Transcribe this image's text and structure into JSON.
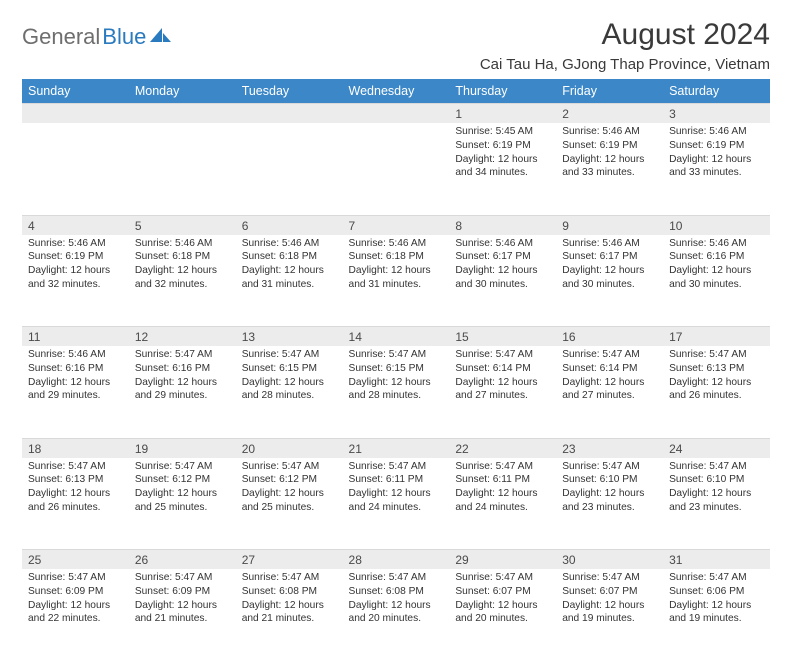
{
  "brand": {
    "part1": "General",
    "part2": "Blue"
  },
  "title": "August 2024",
  "location": "Cai Tau Ha, GJong Thap Province, Vietnam",
  "weekdays": [
    "Sunday",
    "Monday",
    "Tuesday",
    "Wednesday",
    "Thursday",
    "Friday",
    "Saturday"
  ],
  "colors": {
    "headerBg": "#3b87c8",
    "headerText": "#ffffff",
    "dayRowBg": "#ececec",
    "bodyText": "#333333",
    "brandGray": "#6e6e6e",
    "brandBlue": "#2a7abf"
  },
  "weeks": [
    [
      {
        "n": "",
        "sr": "",
        "ss": "",
        "dl": ""
      },
      {
        "n": "",
        "sr": "",
        "ss": "",
        "dl": ""
      },
      {
        "n": "",
        "sr": "",
        "ss": "",
        "dl": ""
      },
      {
        "n": "",
        "sr": "",
        "ss": "",
        "dl": ""
      },
      {
        "n": "1",
        "sr": "Sunrise: 5:45 AM",
        "ss": "Sunset: 6:19 PM",
        "dl": "Daylight: 12 hours and 34 minutes."
      },
      {
        "n": "2",
        "sr": "Sunrise: 5:46 AM",
        "ss": "Sunset: 6:19 PM",
        "dl": "Daylight: 12 hours and 33 minutes."
      },
      {
        "n": "3",
        "sr": "Sunrise: 5:46 AM",
        "ss": "Sunset: 6:19 PM",
        "dl": "Daylight: 12 hours and 33 minutes."
      }
    ],
    [
      {
        "n": "4",
        "sr": "Sunrise: 5:46 AM",
        "ss": "Sunset: 6:19 PM",
        "dl": "Daylight: 12 hours and 32 minutes."
      },
      {
        "n": "5",
        "sr": "Sunrise: 5:46 AM",
        "ss": "Sunset: 6:18 PM",
        "dl": "Daylight: 12 hours and 32 minutes."
      },
      {
        "n": "6",
        "sr": "Sunrise: 5:46 AM",
        "ss": "Sunset: 6:18 PM",
        "dl": "Daylight: 12 hours and 31 minutes."
      },
      {
        "n": "7",
        "sr": "Sunrise: 5:46 AM",
        "ss": "Sunset: 6:18 PM",
        "dl": "Daylight: 12 hours and 31 minutes."
      },
      {
        "n": "8",
        "sr": "Sunrise: 5:46 AM",
        "ss": "Sunset: 6:17 PM",
        "dl": "Daylight: 12 hours and 30 minutes."
      },
      {
        "n": "9",
        "sr": "Sunrise: 5:46 AM",
        "ss": "Sunset: 6:17 PM",
        "dl": "Daylight: 12 hours and 30 minutes."
      },
      {
        "n": "10",
        "sr": "Sunrise: 5:46 AM",
        "ss": "Sunset: 6:16 PM",
        "dl": "Daylight: 12 hours and 30 minutes."
      }
    ],
    [
      {
        "n": "11",
        "sr": "Sunrise: 5:46 AM",
        "ss": "Sunset: 6:16 PM",
        "dl": "Daylight: 12 hours and 29 minutes."
      },
      {
        "n": "12",
        "sr": "Sunrise: 5:47 AM",
        "ss": "Sunset: 6:16 PM",
        "dl": "Daylight: 12 hours and 29 minutes."
      },
      {
        "n": "13",
        "sr": "Sunrise: 5:47 AM",
        "ss": "Sunset: 6:15 PM",
        "dl": "Daylight: 12 hours and 28 minutes."
      },
      {
        "n": "14",
        "sr": "Sunrise: 5:47 AM",
        "ss": "Sunset: 6:15 PM",
        "dl": "Daylight: 12 hours and 28 minutes."
      },
      {
        "n": "15",
        "sr": "Sunrise: 5:47 AM",
        "ss": "Sunset: 6:14 PM",
        "dl": "Daylight: 12 hours and 27 minutes."
      },
      {
        "n": "16",
        "sr": "Sunrise: 5:47 AM",
        "ss": "Sunset: 6:14 PM",
        "dl": "Daylight: 12 hours and 27 minutes."
      },
      {
        "n": "17",
        "sr": "Sunrise: 5:47 AM",
        "ss": "Sunset: 6:13 PM",
        "dl": "Daylight: 12 hours and 26 minutes."
      }
    ],
    [
      {
        "n": "18",
        "sr": "Sunrise: 5:47 AM",
        "ss": "Sunset: 6:13 PM",
        "dl": "Daylight: 12 hours and 26 minutes."
      },
      {
        "n": "19",
        "sr": "Sunrise: 5:47 AM",
        "ss": "Sunset: 6:12 PM",
        "dl": "Daylight: 12 hours and 25 minutes."
      },
      {
        "n": "20",
        "sr": "Sunrise: 5:47 AM",
        "ss": "Sunset: 6:12 PM",
        "dl": "Daylight: 12 hours and 25 minutes."
      },
      {
        "n": "21",
        "sr": "Sunrise: 5:47 AM",
        "ss": "Sunset: 6:11 PM",
        "dl": "Daylight: 12 hours and 24 minutes."
      },
      {
        "n": "22",
        "sr": "Sunrise: 5:47 AM",
        "ss": "Sunset: 6:11 PM",
        "dl": "Daylight: 12 hours and 24 minutes."
      },
      {
        "n": "23",
        "sr": "Sunrise: 5:47 AM",
        "ss": "Sunset: 6:10 PM",
        "dl": "Daylight: 12 hours and 23 minutes."
      },
      {
        "n": "24",
        "sr": "Sunrise: 5:47 AM",
        "ss": "Sunset: 6:10 PM",
        "dl": "Daylight: 12 hours and 23 minutes."
      }
    ],
    [
      {
        "n": "25",
        "sr": "Sunrise: 5:47 AM",
        "ss": "Sunset: 6:09 PM",
        "dl": "Daylight: 12 hours and 22 minutes."
      },
      {
        "n": "26",
        "sr": "Sunrise: 5:47 AM",
        "ss": "Sunset: 6:09 PM",
        "dl": "Daylight: 12 hours and 21 minutes."
      },
      {
        "n": "27",
        "sr": "Sunrise: 5:47 AM",
        "ss": "Sunset: 6:08 PM",
        "dl": "Daylight: 12 hours and 21 minutes."
      },
      {
        "n": "28",
        "sr": "Sunrise: 5:47 AM",
        "ss": "Sunset: 6:08 PM",
        "dl": "Daylight: 12 hours and 20 minutes."
      },
      {
        "n": "29",
        "sr": "Sunrise: 5:47 AM",
        "ss": "Sunset: 6:07 PM",
        "dl": "Daylight: 12 hours and 20 minutes."
      },
      {
        "n": "30",
        "sr": "Sunrise: 5:47 AM",
        "ss": "Sunset: 6:07 PM",
        "dl": "Daylight: 12 hours and 19 minutes."
      },
      {
        "n": "31",
        "sr": "Sunrise: 5:47 AM",
        "ss": "Sunset: 6:06 PM",
        "dl": "Daylight: 12 hours and 19 minutes."
      }
    ]
  ]
}
